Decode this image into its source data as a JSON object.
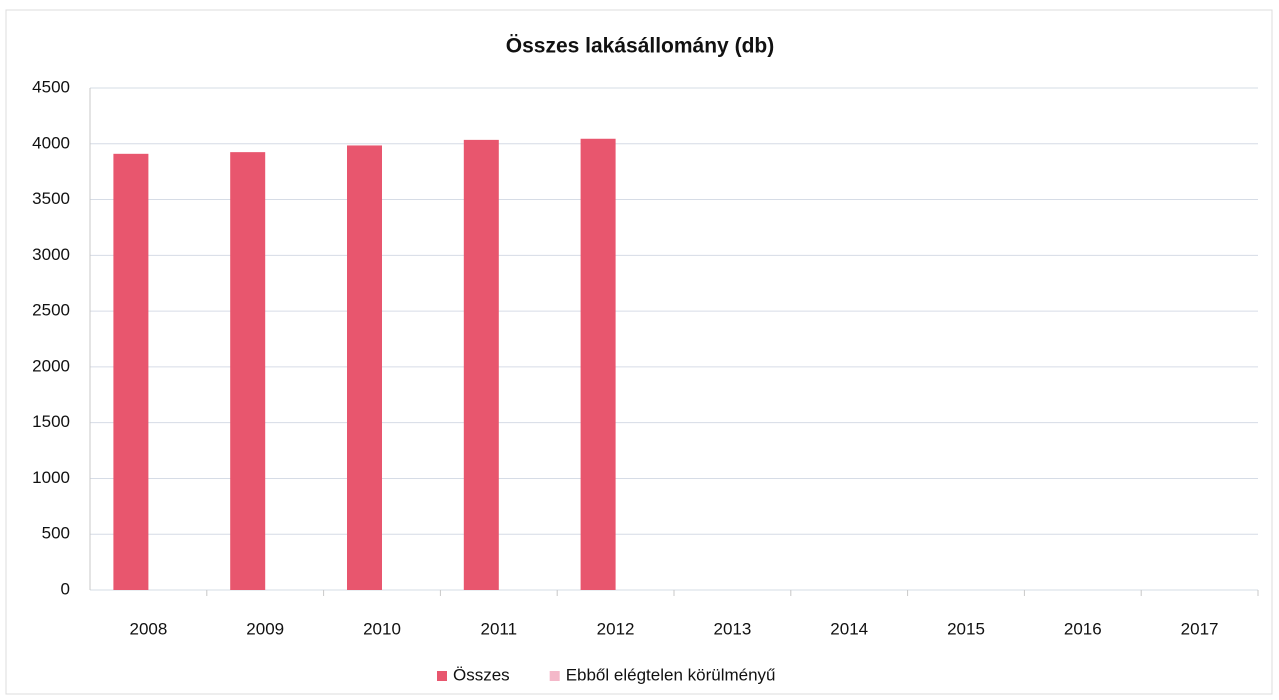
{
  "chart_data": {
    "type": "bar",
    "title": "Összes lakásállomány (db)",
    "categories": [
      "2008",
      "2009",
      "2010",
      "2011",
      "2012",
      "2013",
      "2014",
      "2015",
      "2016",
      "2017"
    ],
    "series": [
      {
        "name": "Összes",
        "color": "#e8566e",
        "values": [
          3910,
          3925,
          3985,
          4035,
          4045,
          null,
          null,
          null,
          null,
          null
        ]
      },
      {
        "name": "Ebből elégtelen körülményű",
        "color": "#f4b8c9",
        "values": [
          null,
          null,
          null,
          null,
          null,
          null,
          null,
          null,
          null,
          null
        ]
      }
    ],
    "ylim": [
      0,
      4500
    ],
    "yticks": [
      0,
      500,
      1000,
      1500,
      2000,
      2500,
      3000,
      3500,
      4000,
      4500
    ],
    "grid": true,
    "legend": "bottom"
  }
}
